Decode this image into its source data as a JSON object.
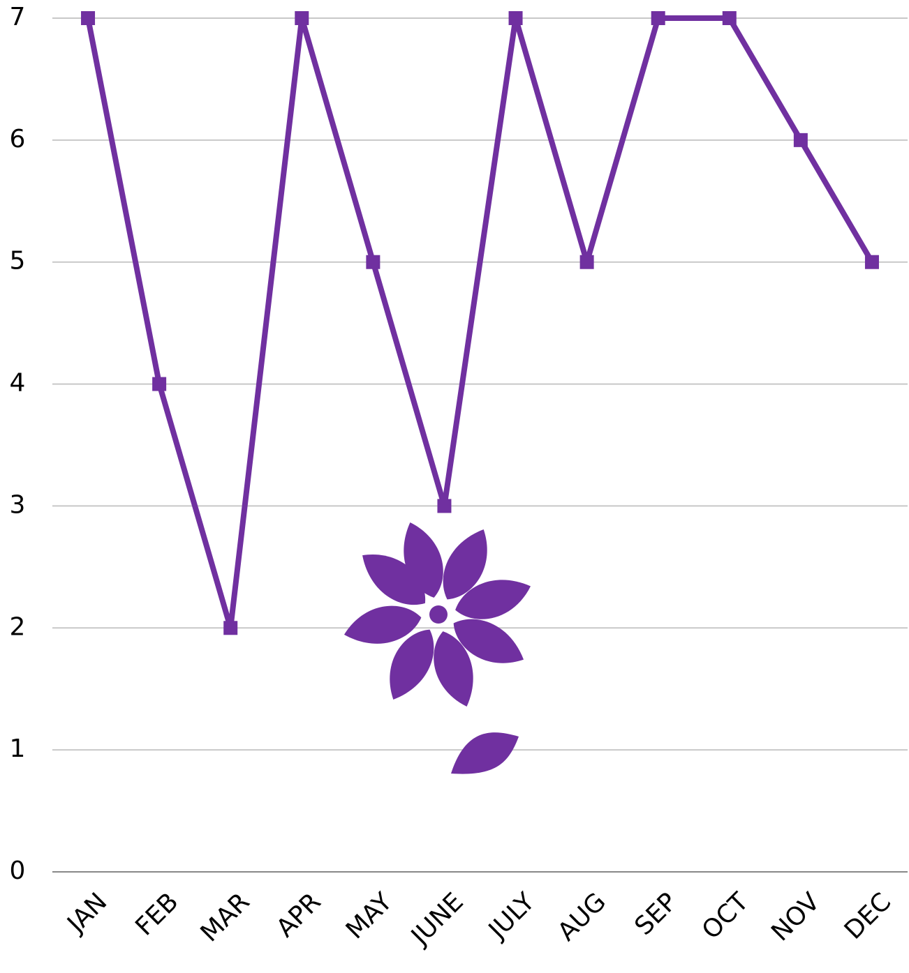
{
  "chart_data": {
    "type": "line",
    "categories": [
      "JAN",
      "FEB",
      "MAR",
      "APR",
      "MAY",
      "JUNE",
      "JULY",
      "AUG",
      "SEP",
      "OCT",
      "NOV",
      "DEC"
    ],
    "values": [
      7,
      4,
      2,
      7,
      5,
      3,
      7,
      5,
      7,
      7,
      6,
      5
    ],
    "color": "#7030a0",
    "ylim": [
      0,
      7
    ],
    "yticks": [
      0,
      1,
      2,
      3,
      4,
      5,
      6,
      7
    ],
    "grid": true
  }
}
